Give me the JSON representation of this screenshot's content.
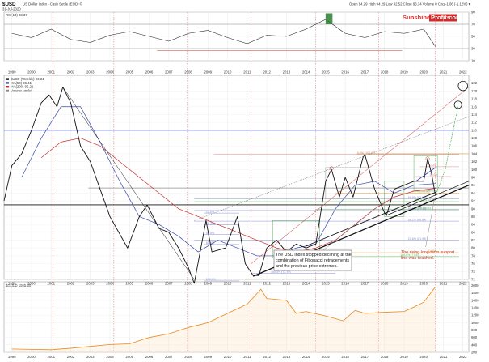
{
  "header": {
    "symbol": "$USD",
    "description": "US Dollar Index - Cash Settle (EOD) ©",
    "date": "31-Jul-2020",
    "stats": "Open 94.29  High 94.29  Low 92.52  Close 93.34  Volume 0  Chg -1.06 (-1.12%) ▾"
  },
  "logo": {
    "left": "Sunshine",
    "right": "Profits",
    "suffix": ".com"
  },
  "rsi_panel": {
    "label": "RSI(14) 33.37",
    "ticks": [
      "90",
      "70",
      "50",
      "30",
      "10"
    ]
  },
  "main_panel": {
    "legend": [
      "$USD (Weekly) 93.34",
      "MA(50) 96.41",
      "MA(200) 95.21",
      "Volume undef"
    ],
    "y_ticks": [
      "122",
      "120",
      "118",
      "116",
      "114",
      "112",
      "110",
      "108",
      "106",
      "104",
      "102",
      "100",
      "98",
      "96",
      "94",
      "92",
      "90",
      "88",
      "86",
      "84",
      "82",
      "80",
      "78",
      "76",
      "74",
      "72"
    ],
    "fib_labels": [
      "0.0% (103.82)",
      "0.0%",
      "23.6%",
      "38.2%",
      "50.0%",
      "61.8%",
      "100.0%",
      "23.6% (81.99)",
      "38.2% (86.84)",
      "50.0% (89.56)",
      "61.8% (92.50)",
      "100.0% (72.70)",
      "23.6%",
      "38.2% (91.8)",
      "50.0% (89.8)",
      "100.0% (77.8)",
      "61.8%",
      "0.0% (103.82)"
    ],
    "annotation_main": [
      "The USD Index stopped declining at the",
      "combination of Fibonacci retracements",
      "and the previous price extremes."
    ],
    "annotation_right": [
      "The rising long-term support",
      "line was reached."
    ]
  },
  "gold_panel": {
    "label": "$GOLD 1965.90",
    "y_ticks": [
      "2000",
      "1800",
      "1600",
      "1400",
      "1200",
      "1000",
      "800",
      "600",
      "400",
      "200"
    ]
  },
  "x_axis": [
    "1999",
    "2000",
    "2001",
    "2002",
    "2003",
    "2004",
    "2005",
    "2006",
    "2007",
    "2008",
    "2009",
    "2010",
    "2011",
    "2012",
    "2013",
    "2014",
    "2015",
    "2016",
    "2017",
    "2018",
    "2019",
    "2020",
    "2021",
    "2022"
  ],
  "colors": {
    "price": "#111111",
    "ma50": "#3949ab",
    "ma200": "#c62828",
    "gold": "#e8891e",
    "support": "#111111",
    "resistance": "#111111",
    "annotation_red": "#c0392b",
    "rsi_line": "#222222",
    "rsi_overbought": "#2e7d32",
    "fib_blue": "#8a8fd0",
    "fib_red": "#d48a8a",
    "fib_green": "#5bb35b",
    "fib_orange": "#e0a030",
    "circle": "#111111",
    "projection": "#3fa84a",
    "horizontal_level": "#3949ab"
  },
  "chart_data": [
    {
      "type": "line",
      "panel": "rsi",
      "title": "RSI(14) 33.37",
      "ylim": [
        10,
        90
      ],
      "reference_levels": [
        70,
        30
      ],
      "x": [
        1999,
        2000,
        2001,
        2002,
        2003,
        2004,
        2005,
        2006,
        2007,
        2008,
        2009,
        2010,
        2011,
        2012,
        2013,
        2014,
        2015,
        2016,
        2017,
        2018,
        2019,
        2020,
        2020.6
      ],
      "values": [
        55,
        48,
        62,
        45,
        40,
        52,
        58,
        50,
        42,
        55,
        60,
        48,
        38,
        52,
        50,
        62,
        78,
        55,
        48,
        58,
        55,
        62,
        33.37
      ]
    },
    {
      "type": "line",
      "panel": "main",
      "title": "$USD (Weekly) 93.34",
      "ylim": [
        72,
        124
      ],
      "series": [
        {
          "name": "$USD (Weekly) 93.34",
          "x": [
            1998.6,
            1999.0,
            1999.5,
            2000.0,
            2000.5,
            2000.9,
            2001.3,
            2001.6,
            2002.0,
            2002.5,
            2003.0,
            2003.5,
            2004.0,
            2004.9,
            2005.5,
            2005.9,
            2006.5,
            2007.0,
            2007.5,
            2008.0,
            2008.3,
            2008.9,
            2009.2,
            2009.9,
            2010.5,
            2010.9,
            2011.3,
            2011.6,
            2012.0,
            2012.5,
            2013.0,
            2013.5,
            2014.0,
            2014.5,
            2015.0,
            2015.3,
            2015.7,
            2016.0,
            2016.4,
            2016.9,
            2017.0,
            2017.5,
            2018.0,
            2018.1,
            2018.5,
            2019.0,
            2019.5,
            2020.0,
            2020.2,
            2020.4,
            2020.6
          ],
          "values": [
            92,
            101,
            104,
            110,
            117,
            119,
            116,
            121,
            117,
            106,
            102,
            95,
            88,
            80,
            88,
            91,
            85,
            84,
            80,
            75,
            71,
            87,
            79,
            80,
            88,
            76,
            73,
            73,
            80,
            82,
            79,
            81,
            80,
            81,
            97,
            100,
            93,
            98,
            93,
            103,
            103.8,
            95,
            89,
            88.3,
            95,
            96,
            97,
            97,
            102.8,
            99,
            93.34
          ]
        },
        {
          "name": "MA(50) 96.41",
          "x": [
            1999.5,
            2000.5,
            2001.5,
            2002.5,
            2003.5,
            2004.5,
            2005.5,
            2006.5,
            2007.5,
            2008.5,
            2009.5,
            2010.5,
            2011.5,
            2012.5,
            2013.5,
            2014.5,
            2015.5,
            2016.5,
            2017.5,
            2018.5,
            2019.5,
            2020.6
          ],
          "values": [
            98,
            108,
            116,
            116,
            107,
            97,
            88,
            86,
            83,
            79,
            82,
            80,
            78,
            78,
            80,
            81,
            90,
            96,
            97,
            94,
            96,
            96.41
          ]
        },
        {
          "name": "MA(200) 95.21",
          "x": [
            2000.5,
            2001.5,
            2002.5,
            2003.5,
            2004.5,
            2005.5,
            2006.5,
            2007.5,
            2008.5,
            2009.5,
            2010.5,
            2011.5,
            2012.5,
            2013.5,
            2014.5,
            2015.5,
            2016.5,
            2017.5,
            2018.5,
            2019.5,
            2020.6
          ],
          "values": [
            103,
            107,
            108,
            106,
            102,
            98,
            94,
            90,
            88,
            86,
            84,
            82,
            80,
            79,
            80,
            82,
            86,
            90,
            93,
            94.5,
            95.21
          ]
        }
      ]
    },
    {
      "type": "area",
      "panel": "gold",
      "title": "$GOLD 1965.90",
      "ylim": [
        200,
        2100
      ],
      "x": [
        1999,
        2000,
        2001,
        2002,
        2003,
        2004,
        2005,
        2006,
        2007,
        2008,
        2009,
        2010,
        2011,
        2011.7,
        2012,
        2013,
        2013.5,
        2014,
        2015,
        2015.9,
        2016.5,
        2017,
        2018,
        2019,
        2019.5,
        2020,
        2020.6
      ],
      "values": [
        290,
        280,
        270,
        310,
        360,
        410,
        430,
        600,
        700,
        870,
        1000,
        1250,
        1500,
        1900,
        1650,
        1600,
        1250,
        1300,
        1180,
        1050,
        1330,
        1250,
        1280,
        1300,
        1420,
        1550,
        1965.9
      ]
    }
  ]
}
